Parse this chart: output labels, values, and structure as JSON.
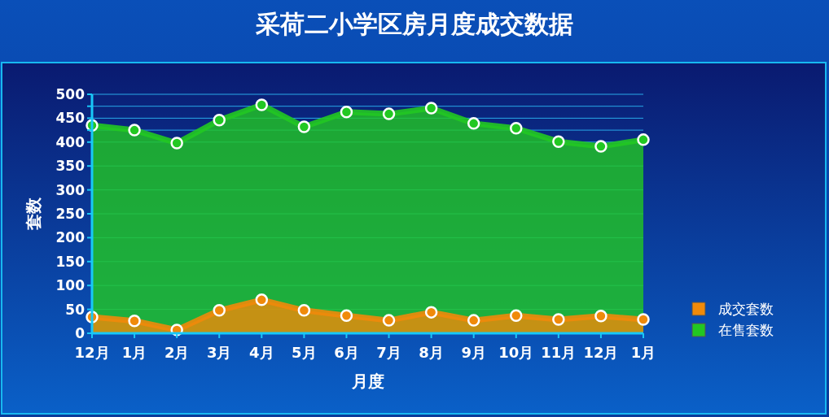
{
  "chart_data": {
    "type": "area",
    "title": "采荷二小学区房月度成交数据",
    "xlabel": "月度",
    "ylabel": "套数",
    "categories": [
      "12月",
      "1月",
      "2月",
      "3月",
      "4月",
      "5月",
      "6月",
      "7月",
      "8月",
      "9月",
      "10月",
      "11月",
      "12月",
      "1月"
    ],
    "series": [
      {
        "name": "在售套数",
        "color": "#22c822",
        "values": [
          435,
          425,
          398,
          446,
          478,
          432,
          463,
          459,
          471,
          439,
          429,
          401,
          391,
          405
        ]
      },
      {
        "name": "成交套数",
        "color": "#f08a0a",
        "values": [
          34,
          26,
          7,
          48,
          70,
          48,
          37,
          27,
          44,
          27,
          37,
          29,
          36,
          29
        ]
      }
    ],
    "ylim": [
      0,
      500
    ],
    "yticks": [
      0,
      50,
      100,
      150,
      200,
      250,
      300,
      350,
      400,
      450,
      500,
      {
        "value": 425,
        "label": null
      },
      {
        "value": 475,
        "label": null
      }
    ],
    "grid": "y",
    "legend": "right",
    "marker": "circle"
  }
}
